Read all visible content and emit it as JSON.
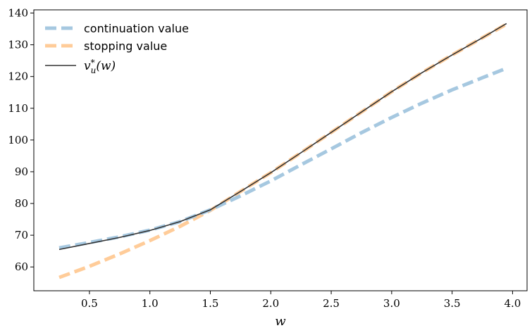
{
  "chart_data": {
    "type": "line",
    "title": "",
    "xlabel": "w",
    "ylabel": "",
    "xlim": [
      0.04,
      4.12
    ],
    "ylim": [
      52.5,
      141.0
    ],
    "xticks": [
      0.5,
      1.0,
      1.5,
      2.0,
      2.5,
      3.0,
      3.5,
      4.0
    ],
    "xtick_labels": [
      "0.5",
      "1.0",
      "1.5",
      "2.0",
      "2.5",
      "3.0",
      "3.5",
      "4.0"
    ],
    "yticks": [
      60,
      70,
      80,
      90,
      100,
      110,
      120,
      130,
      140
    ],
    "ytick_labels": [
      "60",
      "70",
      "80",
      "90",
      "100",
      "110",
      "120",
      "130",
      "140"
    ],
    "grid": false,
    "legend": "upper-left",
    "x": [
      0.25,
      0.5,
      0.75,
      1.0,
      1.25,
      1.5,
      1.75,
      2.0,
      2.25,
      2.5,
      2.75,
      3.0,
      3.25,
      3.5,
      3.75,
      3.95
    ],
    "series": [
      {
        "name": "continuation value",
        "color": "#a6c8e0",
        "style": "dashed",
        "values": [
          66.0,
          67.7,
          69.5,
          71.6,
          74.3,
          78.0,
          82.4,
          87.1,
          92.2,
          97.2,
          102.3,
          107.1,
          111.6,
          115.8,
          119.6,
          122.6
        ]
      },
      {
        "name": "stopping value",
        "color": "#ffcc99",
        "style": "dashed",
        "values": [
          56.7,
          60.2,
          64.1,
          68.3,
          72.8,
          77.8,
          83.8,
          89.7,
          96.0,
          102.4,
          108.8,
          115.2,
          121.2,
          126.8,
          132.2,
          136.5
        ]
      },
      {
        "name": "v_u^*(w)",
        "color": "#333333",
        "style": "solid",
        "values": [
          65.5,
          67.4,
          69.3,
          71.5,
          74.3,
          78.0,
          83.8,
          89.7,
          96.0,
          102.4,
          108.8,
          115.2,
          121.2,
          126.8,
          132.2,
          136.7
        ]
      }
    ]
  }
}
